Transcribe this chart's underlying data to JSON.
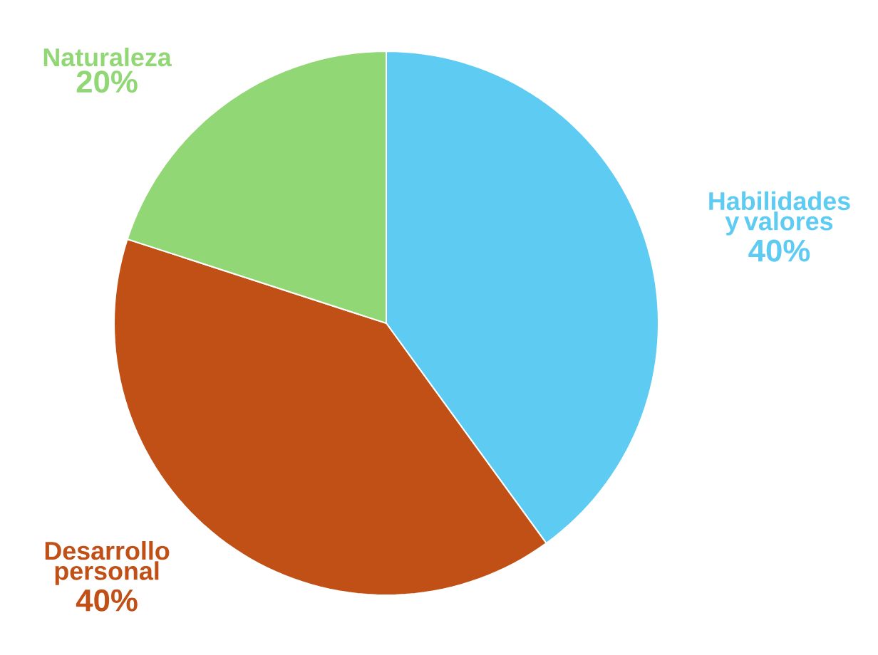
{
  "chart_data": {
    "type": "pie",
    "categories": [
      "Habilidades y valores",
      "Desarrollo personal",
      "Naturaleza"
    ],
    "values": [
      40,
      40,
      20
    ],
    "value_labels": [
      "40%",
      "40%",
      "20%"
    ],
    "colors": [
      "#5ecbf3",
      "#c05016",
      "#92d775"
    ]
  }
}
